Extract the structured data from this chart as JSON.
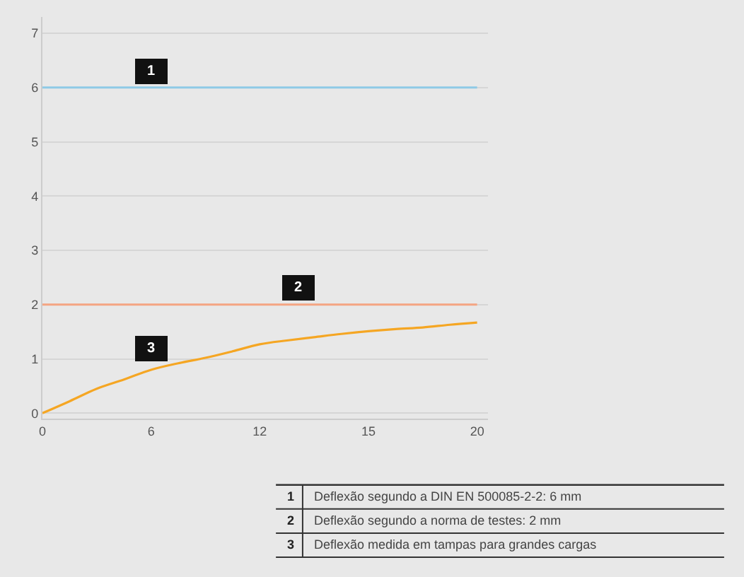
{
  "chart_data": {
    "type": "line",
    "categories": [
      "0",
      null,
      null,
      null,
      "6",
      null,
      null,
      null,
      "12",
      null,
      null,
      null,
      "15",
      null,
      null,
      null,
      "20"
    ],
    "series": [
      {
        "color": "#f5a623",
        "values": [
          0,
          0.22,
          0.45,
          0.62,
          0.8,
          0.92,
          1.02,
          1.14,
          1.27,
          1.34,
          1.4,
          1.46,
          1.51,
          1.55,
          1.58,
          1.63,
          1.67
        ]
      }
    ],
    "ylim": [
      -0.1,
      7.3
    ],
    "yticks": [
      0,
      1,
      2,
      3,
      4,
      5,
      6,
      7
    ],
    "grid": "y",
    "marker": "none",
    "line_style": "solid",
    "ref_lines": [
      {
        "axis": "y",
        "value": 6,
        "color": "#8ecae6"
      },
      {
        "axis": "y",
        "value": 2,
        "color": "#f4a582"
      }
    ],
    "annotations": [
      {
        "text": "1",
        "x": "6",
        "y": 6.3
      },
      {
        "text": "2",
        "y": 2.3
      },
      {
        "text": "3",
        "x": "6",
        "y": 1.2
      },
      "1 Deflexão segundo a DIN EN 500085-2-2: 6 mm",
      "2 Deflexão segundo a norma de testes: 2 mm",
      "3 Deflexão medida em tampas para grandes cargas"
    ]
  }
}
